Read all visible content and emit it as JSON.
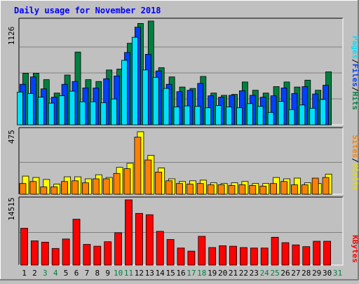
{
  "title": "Daily usage for November 2018",
  "colors": {
    "background": "#c0c0c0",
    "panel": "#c0c0c0",
    "grid": "#808080",
    "title": "#0000ff",
    "hits": "#008040",
    "files": "#0040ff",
    "pages": "#00e0ff",
    "visits": "#ffff00",
    "sites": "#ff8000",
    "kbytes": "#ff0000",
    "weekday_label": "#000000",
    "weekend_label": "#008040"
  },
  "chart_data": [
    {
      "type": "bar",
      "panel": "hits-files-pages",
      "ymax_label": "1126",
      "ylim": [
        0,
        1126
      ],
      "grid": true,
      "legend": [
        "Pages",
        "Files",
        "Hits"
      ],
      "categories": [
        "1",
        "2",
        "3",
        "4",
        "5",
        "6",
        "7",
        "8",
        "9",
        "10",
        "11",
        "12",
        "13",
        "14",
        "15",
        "16",
        "17",
        "18",
        "19",
        "20",
        "21",
        "22",
        "23",
        "24",
        "25",
        "26",
        "27",
        "28",
        "29",
        "30",
        "31"
      ],
      "series": [
        {
          "name": "Hits",
          "values": [
            560,
            560,
            490,
            345,
            540,
            790,
            490,
            470,
            595,
            605,
            885,
            1100,
            1126,
            620,
            520,
            410,
            395,
            525,
            345,
            320,
            330,
            465,
            375,
            345,
            415,
            465,
            410,
            485,
            375,
            575,
            0
          ]
        },
        {
          "name": "Files",
          "values": [
            440,
            520,
            390,
            300,
            440,
            470,
            400,
            400,
            500,
            530,
            785,
            1060,
            765,
            585,
            440,
            360,
            375,
            450,
            315,
            300,
            320,
            370,
            320,
            300,
            315,
            400,
            340,
            415,
            335,
            430,
            0
          ]
        },
        {
          "name": "Pages",
          "values": [
            355,
            340,
            300,
            235,
            315,
            365,
            250,
            250,
            240,
            280,
            700,
            950,
            595,
            515,
            395,
            195,
            205,
            200,
            185,
            210,
            195,
            185,
            230,
            200,
            135,
            255,
            165,
            215,
            180,
            275,
            0
          ]
        }
      ]
    },
    {
      "type": "bar",
      "panel": "visits-sites",
      "ymax_label": "475",
      "ylim": [
        0,
        475
      ],
      "grid": true,
      "legend": [
        "Sites",
        "Visits"
      ],
      "categories": [
        "1",
        "2",
        "3",
        "4",
        "5",
        "6",
        "7",
        "8",
        "9",
        "10",
        "11",
        "12",
        "13",
        "14",
        "15",
        "16",
        "17",
        "18",
        "19",
        "20",
        "21",
        "22",
        "23",
        "24",
        "25",
        "26",
        "27",
        "28",
        "29",
        "30",
        "31"
      ],
      "series": [
        {
          "name": "Visits",
          "values": [
            135,
            125,
            110,
            75,
            130,
            130,
            115,
            145,
            125,
            200,
            230,
            465,
            290,
            195,
            115,
            95,
            100,
            105,
            85,
            80,
            85,
            95,
            80,
            80,
            125,
            115,
            120,
            85,
            80,
            150,
            0
          ]
        },
        {
          "name": "Sites",
          "values": [
            80,
            95,
            55,
            55,
            95,
            100,
            85,
            115,
            115,
            155,
            190,
            425,
            255,
            165,
            100,
            80,
            75,
            80,
            70,
            70,
            65,
            70,
            65,
            60,
            80,
            95,
            70,
            70,
            120,
            125,
            0
          ]
        }
      ]
    },
    {
      "type": "bar",
      "panel": "kbytes",
      "ymax_label": "14515",
      "ylim": [
        0,
        14515
      ],
      "grid": true,
      "legend": [
        "KBytes"
      ],
      "categories": [
        "1",
        "2",
        "3",
        "4",
        "5",
        "6",
        "7",
        "8",
        "9",
        "10",
        "11",
        "12",
        "13",
        "14",
        "15",
        "16",
        "17",
        "18",
        "19",
        "20",
        "21",
        "22",
        "23",
        "24",
        "25",
        "26",
        "27",
        "28",
        "29",
        "30",
        "31"
      ],
      "series": [
        {
          "name": "KBytes",
          "values": [
            8200,
            5400,
            5100,
            3700,
            5800,
            10200,
            4600,
            4200,
            5200,
            7200,
            14515,
            11500,
            11200,
            7500,
            5700,
            3800,
            3100,
            6400,
            3900,
            4300,
            4200,
            3900,
            3800,
            3800,
            6200,
            5000,
            4500,
            4100,
            5300,
            5300,
            0
          ]
        }
      ]
    }
  ],
  "x_labels": [
    {
      "label": "1",
      "weekend": false
    },
    {
      "label": "2",
      "weekend": false
    },
    {
      "label": "3",
      "weekend": true
    },
    {
      "label": "4",
      "weekend": true
    },
    {
      "label": "5",
      "weekend": false
    },
    {
      "label": "6",
      "weekend": false
    },
    {
      "label": "7",
      "weekend": false
    },
    {
      "label": "8",
      "weekend": false
    },
    {
      "label": "9",
      "weekend": false
    },
    {
      "label": "10",
      "weekend": true
    },
    {
      "label": "11",
      "weekend": true
    },
    {
      "label": "12",
      "weekend": false
    },
    {
      "label": "13",
      "weekend": false
    },
    {
      "label": "14",
      "weekend": false
    },
    {
      "label": "15",
      "weekend": false
    },
    {
      "label": "16",
      "weekend": false
    },
    {
      "label": "17",
      "weekend": true
    },
    {
      "label": "18",
      "weekend": true
    },
    {
      "label": "19",
      "weekend": false
    },
    {
      "label": "20",
      "weekend": false
    },
    {
      "label": "21",
      "weekend": false
    },
    {
      "label": "22",
      "weekend": false
    },
    {
      "label": "23",
      "weekend": false
    },
    {
      "label": "24",
      "weekend": true
    },
    {
      "label": "25",
      "weekend": true
    },
    {
      "label": "26",
      "weekend": false
    },
    {
      "label": "27",
      "weekend": false
    },
    {
      "label": "28",
      "weekend": false
    },
    {
      "label": "29",
      "weekend": false
    },
    {
      "label": "30",
      "weekend": false
    },
    {
      "label": "31",
      "weekend": true
    }
  ],
  "legend_labels": {
    "pages": "Pages",
    "files": "Files",
    "hits": "Hits",
    "sites": "Sites",
    "visits": "Visits",
    "kbytes": "KBytes",
    "separator": "/"
  }
}
